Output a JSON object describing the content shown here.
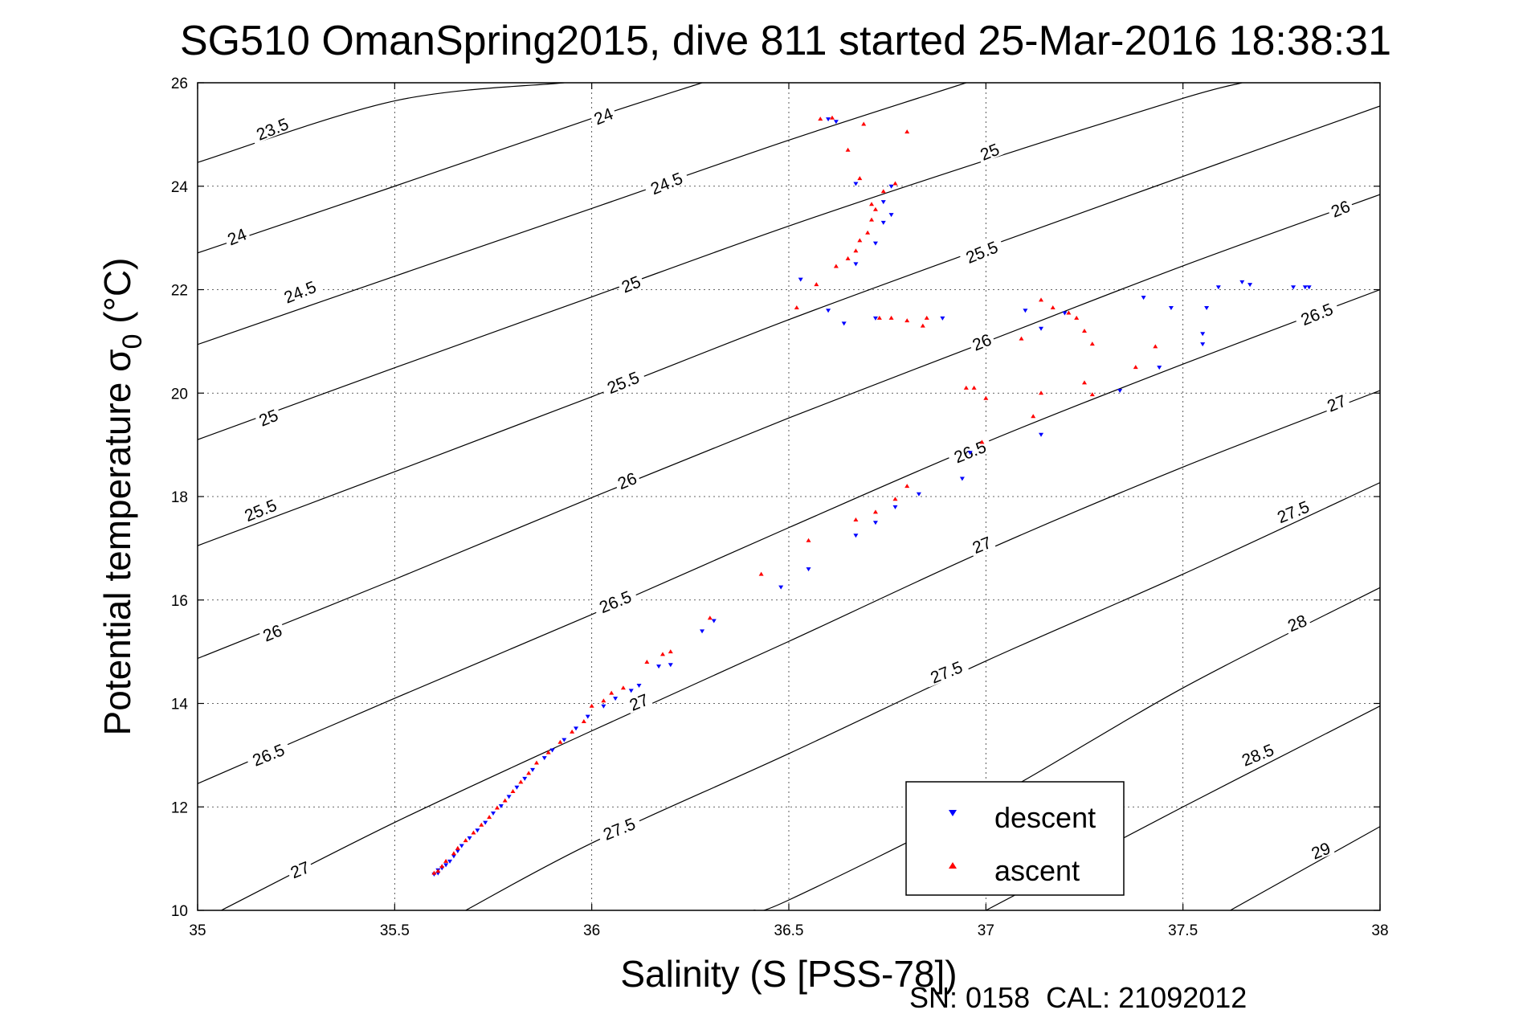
{
  "chart_data": {
    "type": "scatter",
    "title": "SG510 OmanSpring2015, dive 811 started 25-Mar-2016 18:38:31",
    "xlabel": "Salinity (S [PSS-78])",
    "ylabel": "Potential temperature σ",
    "ylabel_sub": "0",
    "ylabel_suffix": " (°C)",
    "xlim": [
      35,
      38
    ],
    "ylim": [
      10,
      26
    ],
    "x_ticks": [
      35,
      35.5,
      36,
      36.5,
      37,
      37.5,
      38
    ],
    "x_tick_labels": [
      "35",
      "35.5",
      "36",
      "36.5",
      "37",
      "37.5",
      "38"
    ],
    "y_ticks": [
      10,
      12,
      14,
      16,
      18,
      20,
      22,
      24,
      26
    ],
    "y_tick_labels": [
      "10",
      "12",
      "14",
      "16",
      "18",
      "20",
      "22",
      "24",
      "26"
    ],
    "grid": true,
    "legend_position": "bottom-right",
    "density_contours": [
      {
        "value": 23.5,
        "label": "23.5",
        "points": [
          [
            35,
            24.46
          ],
          [
            35.5,
            25.65
          ],
          [
            35.93,
            26.0
          ]
        ]
      },
      {
        "value": 24,
        "label": "24",
        "points": [
          [
            35,
            22.71
          ],
          [
            35.5,
            24.0
          ],
          [
            36,
            25.31
          ],
          [
            36.28,
            26.0
          ]
        ]
      },
      {
        "value": 24.5,
        "label": "24.5",
        "points": [
          [
            35,
            20.94
          ],
          [
            35.5,
            22.26
          ],
          [
            36,
            23.57
          ],
          [
            36.5,
            24.89
          ],
          [
            36.95,
            26.0
          ]
        ]
      },
      {
        "value": 25,
        "label": "25",
        "points": [
          [
            35,
            19.1
          ],
          [
            35.5,
            20.49
          ],
          [
            36,
            21.86
          ],
          [
            36.5,
            23.23
          ],
          [
            37,
            24.5
          ],
          [
            37.5,
            25.7
          ],
          [
            37.65,
            26.0
          ]
        ]
      },
      {
        "value": 25.5,
        "label": "25.5",
        "points": [
          [
            35,
            17.05
          ],
          [
            35.5,
            18.48
          ],
          [
            36,
            19.93
          ],
          [
            36.5,
            21.42
          ],
          [
            37,
            22.82
          ],
          [
            37.5,
            24.19
          ],
          [
            38,
            25.55
          ]
        ]
      },
      {
        "value": 26,
        "label": "26",
        "points": [
          [
            35,
            14.87
          ],
          [
            35.5,
            16.4
          ],
          [
            36,
            17.98
          ],
          [
            36.5,
            19.52
          ],
          [
            37,
            20.99
          ],
          [
            37.5,
            22.46
          ],
          [
            38,
            23.84
          ]
        ]
      },
      {
        "value": 26.5,
        "label": "26.5",
        "points": [
          [
            35,
            12.45
          ],
          [
            35.5,
            14.1
          ],
          [
            36,
            15.72
          ],
          [
            36.5,
            17.4
          ],
          [
            37,
            19.05
          ],
          [
            37.5,
            20.56
          ],
          [
            38,
            22.0
          ]
        ]
      },
      {
        "value": 27,
        "label": "27",
        "points": [
          [
            35.06,
            10.0
          ],
          [
            35.5,
            11.7
          ],
          [
            36,
            13.47
          ],
          [
            36.5,
            15.2
          ],
          [
            37,
            16.96
          ],
          [
            37.5,
            18.57
          ],
          [
            38,
            20.05
          ]
        ]
      },
      {
        "value": 27.5,
        "label": "27.5",
        "points": [
          [
            35.68,
            10.0
          ],
          [
            36,
            11.3
          ],
          [
            36.5,
            13.03
          ],
          [
            37,
            14.82
          ],
          [
            37.5,
            16.5
          ],
          [
            38,
            18.27
          ]
        ]
      },
      {
        "value": 28,
        "label": "28",
        "points": [
          [
            36.41,
            10.0
          ],
          [
            36.5,
            10.2
          ],
          [
            37,
            12.1
          ],
          [
            37.5,
            14.3
          ],
          [
            38,
            16.24
          ]
        ]
      },
      {
        "value": 28.5,
        "label": "28.5",
        "points": [
          [
            37.0,
            10.0
          ],
          [
            37.5,
            12.0
          ],
          [
            38,
            13.95
          ]
        ]
      },
      {
        "value": 29,
        "label": "29",
        "points": [
          [
            37.62,
            10.0
          ],
          [
            38,
            11.62
          ]
        ]
      }
    ],
    "contour_labels": [
      {
        "text": "23.5",
        "x": 35.19,
        "y": 25.1
      },
      {
        "text": "24",
        "x": 35.1,
        "y": 23.02
      },
      {
        "text": "24.5",
        "x": 35.26,
        "y": 21.95
      },
      {
        "text": "25",
        "x": 35.18,
        "y": 19.52
      },
      {
        "text": "25.5",
        "x": 35.16,
        "y": 17.73
      },
      {
        "text": "26",
        "x": 35.19,
        "y": 15.36
      },
      {
        "text": "26.5",
        "x": 35.18,
        "y": 13.0
      },
      {
        "text": "27",
        "x": 35.26,
        "y": 10.78
      },
      {
        "text": "24",
        "x": 36.03,
        "y": 25.35
      },
      {
        "text": "24.5",
        "x": 36.19,
        "y": 24.05
      },
      {
        "text": "25",
        "x": 36.1,
        "y": 22.1
      },
      {
        "text": "25.5",
        "x": 36.08,
        "y": 20.2
      },
      {
        "text": "26",
        "x": 36.09,
        "y": 18.3
      },
      {
        "text": "26.5",
        "x": 36.06,
        "y": 15.96
      },
      {
        "text": "27",
        "x": 36.12,
        "y": 14.02
      },
      {
        "text": "27.5",
        "x": 36.07,
        "y": 11.57
      },
      {
        "text": "25",
        "x": 37.01,
        "y": 24.66
      },
      {
        "text": "25.5",
        "x": 36.99,
        "y": 22.72
      },
      {
        "text": "26",
        "x": 36.99,
        "y": 20.98
      },
      {
        "text": "26.5",
        "x": 36.96,
        "y": 18.86
      },
      {
        "text": "27",
        "x": 36.99,
        "y": 17.06
      },
      {
        "text": "27.5",
        "x": 36.9,
        "y": 14.6
      },
      {
        "text": "26",
        "x": 37.9,
        "y": 23.56
      },
      {
        "text": "26.5",
        "x": 37.84,
        "y": 21.52
      },
      {
        "text": "27",
        "x": 37.89,
        "y": 19.8
      },
      {
        "text": "27.5",
        "x": 37.78,
        "y": 17.7
      },
      {
        "text": "28",
        "x": 37.79,
        "y": 15.55
      },
      {
        "text": "28.5",
        "x": 37.69,
        "y": 13.0
      },
      {
        "text": "29",
        "x": 37.85,
        "y": 11.15
      }
    ],
    "series": [
      {
        "name": "descent",
        "color": "#0000ff",
        "marker": "triangle-down",
        "points": [
          [
            35.6,
            10.7
          ],
          [
            35.61,
            10.72
          ],
          [
            35.61,
            10.78
          ],
          [
            35.62,
            10.82
          ],
          [
            35.63,
            10.88
          ],
          [
            35.64,
            10.95
          ],
          [
            35.65,
            11.05
          ],
          [
            35.66,
            11.15
          ],
          [
            35.67,
            11.25
          ],
          [
            35.69,
            11.4
          ],
          [
            35.71,
            11.55
          ],
          [
            35.73,
            11.7
          ],
          [
            35.75,
            11.88
          ],
          [
            35.77,
            12.02
          ],
          [
            35.79,
            12.2
          ],
          [
            35.81,
            12.38
          ],
          [
            35.83,
            12.55
          ],
          [
            35.85,
            12.72
          ],
          [
            35.88,
            12.95
          ],
          [
            35.9,
            13.1
          ],
          [
            35.93,
            13.3
          ],
          [
            35.96,
            13.52
          ],
          [
            35.99,
            13.75
          ],
          [
            36.03,
            13.95
          ],
          [
            36.06,
            14.1
          ],
          [
            36.1,
            14.25
          ],
          [
            36.12,
            14.35
          ],
          [
            36.17,
            14.72
          ],
          [
            36.2,
            14.75
          ],
          [
            36.28,
            15.4
          ],
          [
            36.31,
            15.6
          ],
          [
            36.48,
            16.25
          ],
          [
            36.55,
            16.6
          ],
          [
            36.67,
            17.25
          ],
          [
            36.72,
            17.5
          ],
          [
            36.77,
            17.8
          ],
          [
            36.83,
            18.05
          ],
          [
            36.94,
            18.35
          ],
          [
            36.96,
            18.85
          ],
          [
            37.14,
            19.2
          ],
          [
            37.34,
            20.05
          ],
          [
            37.44,
            20.5
          ],
          [
            37.55,
            20.95
          ],
          [
            37.55,
            21.15
          ],
          [
            37.1,
            21.6
          ],
          [
            37.14,
            21.25
          ],
          [
            37.2,
            21.55
          ],
          [
            37.4,
            21.85
          ],
          [
            37.47,
            21.65
          ],
          [
            37.56,
            21.65
          ],
          [
            37.59,
            22.05
          ],
          [
            37.65,
            22.15
          ],
          [
            37.67,
            22.1
          ],
          [
            37.78,
            22.05
          ],
          [
            37.81,
            22.05
          ],
          [
            37.82,
            22.05
          ],
          [
            36.53,
            22.2
          ],
          [
            36.64,
            21.35
          ],
          [
            36.6,
            21.6
          ],
          [
            36.72,
            21.45
          ],
          [
            36.89,
            21.45
          ],
          [
            36.67,
            22.5
          ],
          [
            36.72,
            22.9
          ],
          [
            36.74,
            23.3
          ],
          [
            36.76,
            23.45
          ],
          [
            36.74,
            23.7
          ],
          [
            36.76,
            24.0
          ],
          [
            36.67,
            24.05
          ],
          [
            36.62,
            25.25
          ],
          [
            36.6,
            25.3
          ]
        ]
      },
      {
        "name": "ascent",
        "color": "#ff0000",
        "marker": "triangle-up",
        "points": [
          [
            35.6,
            10.72
          ],
          [
            35.61,
            10.76
          ],
          [
            35.62,
            10.85
          ],
          [
            35.63,
            10.95
          ],
          [
            35.65,
            11.1
          ],
          [
            35.66,
            11.2
          ],
          [
            35.68,
            11.35
          ],
          [
            35.7,
            11.5
          ],
          [
            35.72,
            11.65
          ],
          [
            35.74,
            11.8
          ],
          [
            35.76,
            11.98
          ],
          [
            35.78,
            12.12
          ],
          [
            35.8,
            12.3
          ],
          [
            35.82,
            12.48
          ],
          [
            35.84,
            12.65
          ],
          [
            35.86,
            12.85
          ],
          [
            35.89,
            13.05
          ],
          [
            35.92,
            13.25
          ],
          [
            35.95,
            13.45
          ],
          [
            35.98,
            13.65
          ],
          [
            36.0,
            13.95
          ],
          [
            36.03,
            14.05
          ],
          [
            36.05,
            14.2
          ],
          [
            36.08,
            14.3
          ],
          [
            36.14,
            14.8
          ],
          [
            36.18,
            14.95
          ],
          [
            36.2,
            15.0
          ],
          [
            36.3,
            15.65
          ],
          [
            36.43,
            16.5
          ],
          [
            36.55,
            17.15
          ],
          [
            36.67,
            17.55
          ],
          [
            36.72,
            17.7
          ],
          [
            36.77,
            17.95
          ],
          [
            36.8,
            18.2
          ],
          [
            36.99,
            19.05
          ],
          [
            36.95,
            20.1
          ],
          [
            36.97,
            20.1
          ],
          [
            37.0,
            19.9
          ],
          [
            37.12,
            19.55
          ],
          [
            37.14,
            20.0
          ],
          [
            37.09,
            21.05
          ],
          [
            37.14,
            21.8
          ],
          [
            37.17,
            21.65
          ],
          [
            37.21,
            21.55
          ],
          [
            37.23,
            21.45
          ],
          [
            37.25,
            21.2
          ],
          [
            37.27,
            20.95
          ],
          [
            37.25,
            20.2
          ],
          [
            37.27,
            19.97
          ],
          [
            37.38,
            20.5
          ],
          [
            37.43,
            20.9
          ],
          [
            36.52,
            21.65
          ],
          [
            36.57,
            22.1
          ],
          [
            36.62,
            22.45
          ],
          [
            36.65,
            22.6
          ],
          [
            36.67,
            22.75
          ],
          [
            36.68,
            22.95
          ],
          [
            36.7,
            23.1
          ],
          [
            36.71,
            23.35
          ],
          [
            36.72,
            23.55
          ],
          [
            36.71,
            23.65
          ],
          [
            36.74,
            23.9
          ],
          [
            36.77,
            24.05
          ],
          [
            36.73,
            21.45
          ],
          [
            36.76,
            21.45
          ],
          [
            36.8,
            21.4
          ],
          [
            36.84,
            21.3
          ],
          [
            36.85,
            21.45
          ],
          [
            36.68,
            24.15
          ],
          [
            36.65,
            24.7
          ],
          [
            36.69,
            25.2
          ],
          [
            36.8,
            25.05
          ],
          [
            36.58,
            25.3
          ],
          [
            36.61,
            25.32
          ]
        ]
      }
    ]
  },
  "legend": {
    "items": [
      {
        "label": "descent",
        "color": "#0000ff",
        "marker": "triangle-down"
      },
      {
        "label": "ascent",
        "color": "#ff0000",
        "marker": "triangle-up"
      }
    ]
  },
  "footer": {
    "calibration": "SN: 0158  CAL: 21092012"
  }
}
